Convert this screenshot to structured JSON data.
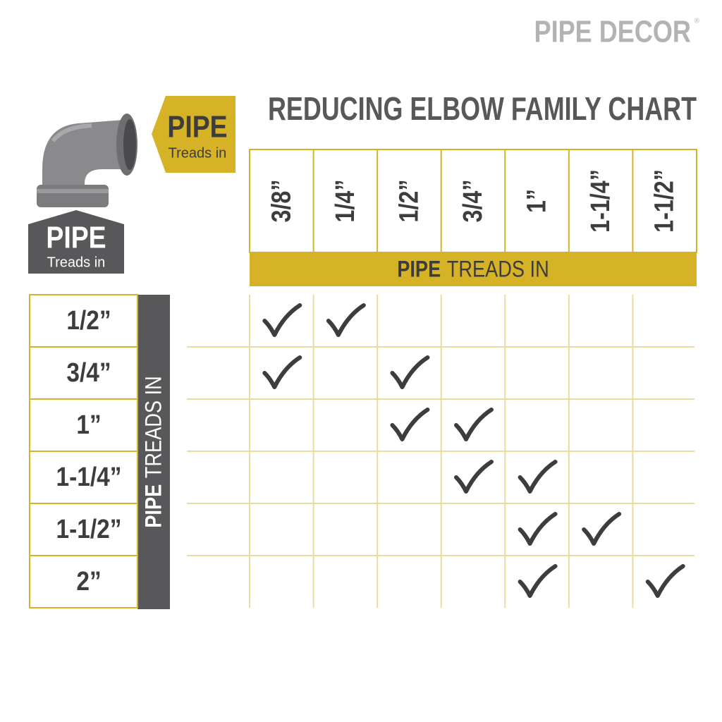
{
  "brand": {
    "name": "PIPE DECOR",
    "mark": "®"
  },
  "title": "REDUCING ELBOW FAMILY CHART",
  "top_label": {
    "main": "PIPE",
    "sub": "Treads in"
  },
  "side_label": {
    "main": "PIPE",
    "sub": "Treads in"
  },
  "columns": {
    "header_bold": "PIPE",
    "header_rest": "TREADS IN",
    "items": [
      "3/8”",
      "1/4”",
      "1/2”",
      "3/4”",
      "1”",
      "1-1/4”",
      "1-1/2”"
    ]
  },
  "rows": {
    "header_bold": "PIPE",
    "header_rest": "TREADS IN",
    "items": [
      "1/2”",
      "3/4”",
      "1”",
      "1-1/4”",
      "1-1/2”",
      "2”"
    ]
  },
  "matrix": [
    [
      true,
      true,
      false,
      false,
      false,
      false,
      false
    ],
    [
      true,
      false,
      true,
      false,
      false,
      false,
      false
    ],
    [
      false,
      false,
      true,
      true,
      false,
      false,
      false
    ],
    [
      false,
      false,
      false,
      true,
      true,
      false,
      false
    ],
    [
      false,
      false,
      false,
      false,
      true,
      true,
      false
    ],
    [
      false,
      false,
      false,
      false,
      true,
      false,
      true
    ]
  ]
}
